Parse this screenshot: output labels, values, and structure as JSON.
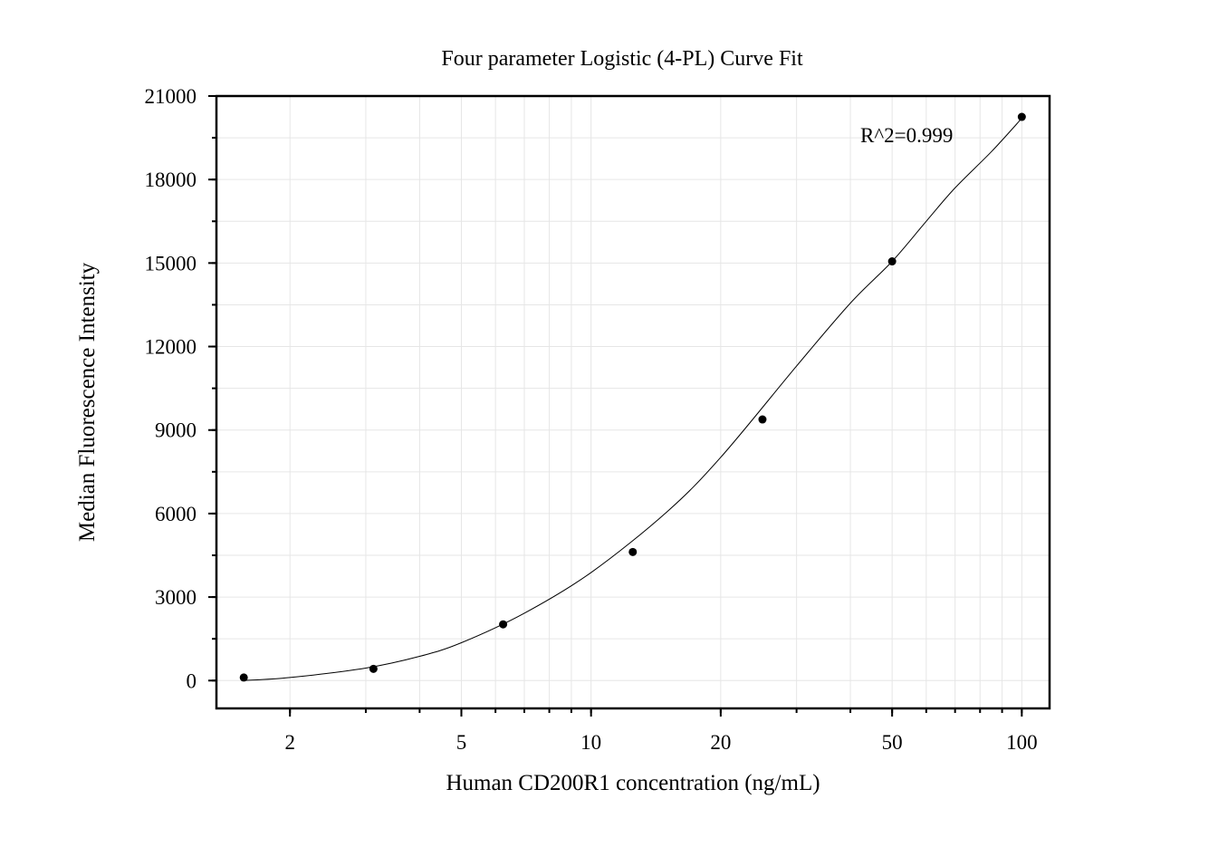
{
  "chart_data": {
    "type": "scatter",
    "title": "Four parameter Logistic (4-PL) Curve Fit",
    "xlabel": "Human CD200R1 concentration (ng/mL)",
    "ylabel": "Median Fluorescence Intensity",
    "x_scale": "log",
    "xlim": [
      1.35,
      116
    ],
    "ylim": [
      -1000,
      21000
    ],
    "x_ticks": [
      2,
      5,
      10,
      20,
      50,
      100
    ],
    "x_tick_labels": [
      "2",
      "5",
      "10",
      "20",
      "50",
      "100"
    ],
    "y_ticks": [
      0,
      3000,
      6000,
      9000,
      12000,
      15000,
      18000,
      21000
    ],
    "y_tick_labels": [
      "0",
      "3000",
      "6000",
      "9000",
      "12000",
      "15000",
      "18000",
      "21000"
    ],
    "grid": true,
    "series": [
      {
        "x": [
          1.5625,
          3.125,
          6.25,
          12.5,
          25,
          50,
          100
        ],
        "y": [
          110,
          420,
          2020,
          4620,
          9380,
          15060,
          20250
        ]
      }
    ],
    "fit": {
      "model": "4PL",
      "x": [
        1.5625,
        2,
        3,
        4,
        5,
        7,
        10,
        15,
        20,
        30,
        40,
        50,
        60,
        70,
        85,
        100
      ],
      "y": [
        0,
        110,
        450,
        870,
        1360,
        2420,
        3880,
        6060,
        8020,
        11300,
        13560,
        15060,
        16500,
        17700,
        19000,
        20200
      ]
    },
    "annotations": [
      {
        "text": "R^2=0.999"
      }
    ]
  }
}
